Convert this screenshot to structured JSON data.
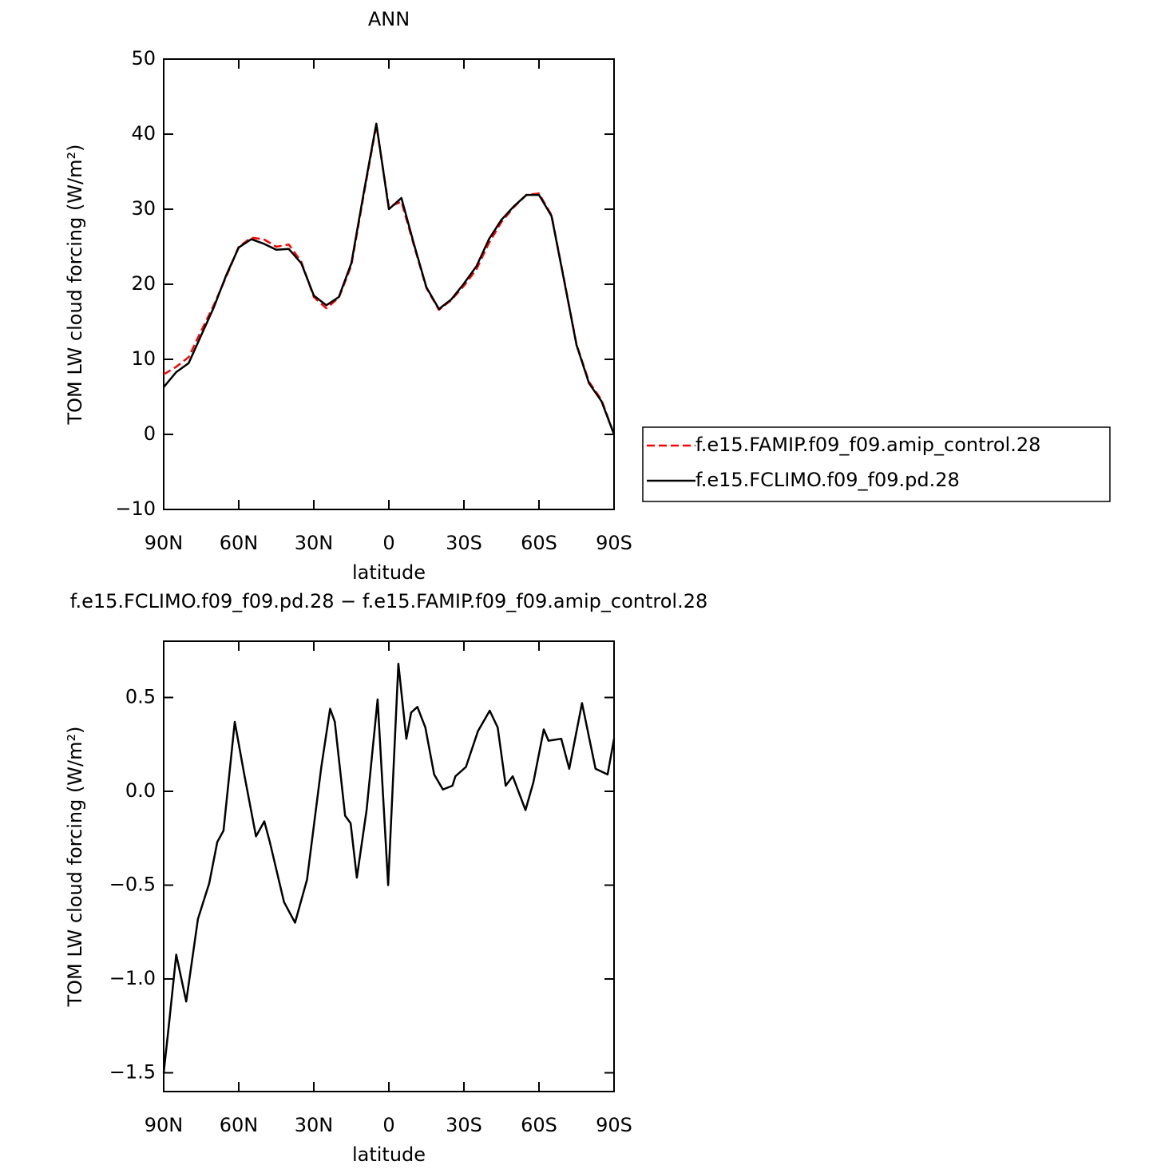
{
  "chart_data": [
    {
      "type": "line",
      "title": "ANN",
      "xlabel": "latitude",
      "ylabel": "TOM LW cloud forcing (W/m²)",
      "x": [
        90,
        85,
        80,
        75,
        70,
        65,
        60,
        55,
        50,
        45,
        40,
        35,
        30,
        25,
        20,
        15,
        10,
        5,
        0,
        -5,
        -10,
        -15,
        -20,
        -25,
        -30,
        -35,
        -40,
        -45,
        -50,
        -55,
        -60,
        -65,
        -70,
        -75,
        -80,
        -85,
        -90
      ],
      "series": [
        {
          "name": "f.e15.FAMIP.f09_f09.amip_control.28",
          "color": "#ff0000",
          "line_style": "dashed",
          "values": [
            8.0,
            9.0,
            10.3,
            13.8,
            17.2,
            21.0,
            25.0,
            26.2,
            26.0,
            25.0,
            25.3,
            23.0,
            18.3,
            16.8,
            18.2,
            22.5,
            32.0,
            41.2,
            30.3,
            31.0,
            25.2,
            19.5,
            16.6,
            17.9,
            19.8,
            22.0,
            25.5,
            28.3,
            30.3,
            31.9,
            32.1,
            29.2,
            20.7,
            12.0,
            7.0,
            4.6,
            0.0
          ]
        },
        {
          "name": "f.e15.FCLIMO.f09_f09.pd.28",
          "color": "#000000",
          "line_style": "solid",
          "values": [
            6.3,
            8.3,
            9.5,
            13.2,
            16.9,
            21.2,
            24.9,
            26.0,
            25.4,
            24.6,
            24.7,
            22.8,
            18.5,
            17.2,
            18.3,
            22.8,
            32.3,
            41.4,
            30.0,
            31.5,
            25.4,
            19.6,
            16.7,
            18.0,
            20.1,
            22.4,
            26.0,
            28.6,
            30.4,
            31.9,
            31.9,
            29.1,
            20.6,
            11.9,
            6.8,
            4.4,
            0.0
          ]
        }
      ],
      "xlim": [
        90,
        -90
      ],
      "xticks": [
        {
          "value": 90,
          "label": "90N"
        },
        {
          "value": 60,
          "label": "60N"
        },
        {
          "value": 30,
          "label": "30N"
        },
        0,
        {
          "value": -30,
          "label": "30S"
        },
        {
          "value": -60,
          "label": "60S"
        },
        {
          "value": -90,
          "label": "90S"
        }
      ],
      "ylim": [
        -10,
        50
      ],
      "yticks": [
        {
          "value": -10,
          "label": "−10"
        },
        0,
        10,
        20,
        30,
        40,
        50
      ],
      "legend": "outside-right"
    },
    {
      "type": "line",
      "title": "f.e15.FCLIMO.f09_f09.pd.28 − f.e15.FAMIP.f09_f09.amip_control.28",
      "xlabel": "latitude",
      "ylabel": "TOM LW cloud forcing (W/m²)",
      "x": [
        90,
        87.8,
        85,
        81,
        76.3,
        71.8,
        68.6,
        66.1,
        61.6,
        57.8,
        53.1,
        49.8,
        47.6,
        41.9,
        37.5,
        32.7,
        27,
        23.5,
        21.6,
        17.5,
        15.3,
        12.8,
        8.9,
        4.5,
        0.3,
        -3.8,
        -7,
        -8.9,
        -11.4,
        -14.6,
        -18.1,
        -21.6,
        -25.4,
        -26.6,
        -30.8,
        -35.6,
        -40.3,
        -43.5,
        -46.7,
        -49.5,
        -54.6,
        -57.8,
        -61.9,
        -63.8,
        -68.9,
        -72.1,
        -77.2,
        -82.6,
        -87.4,
        -90
      ],
      "series": [
        {
          "name": "f.e15.FCLIMO.f09_f09.pd.28 − f.e15.FAMIP.f09_f09.amip_control.28",
          "color": "#000000",
          "line_style": "solid",
          "values": [
            -1.5,
            -1.23,
            -0.87,
            -1.12,
            -0.68,
            -0.49,
            -0.27,
            -0.21,
            0.37,
            0.09,
            -0.24,
            -0.16,
            -0.27,
            -0.59,
            -0.7,
            -0.47,
            0.13,
            0.44,
            0.37,
            -0.13,
            -0.17,
            -0.46,
            -0.1,
            0.49,
            -0.5,
            0.68,
            0.28,
            0.42,
            0.45,
            0.34,
            0.09,
            0.01,
            0.03,
            0.08,
            0.13,
            0.32,
            0.43,
            0.34,
            0.03,
            0.08,
            -0.1,
            0.05,
            0.33,
            0.27,
            0.28,
            0.12,
            0.47,
            0.12,
            0.09,
            0.28
          ]
        }
      ],
      "xlim": [
        90,
        -90
      ],
      "xticks": [
        {
          "value": 90,
          "label": "90N"
        },
        {
          "value": 60,
          "label": "60N"
        },
        {
          "value": 30,
          "label": "30N"
        },
        0,
        {
          "value": -30,
          "label": "30S"
        },
        {
          "value": -60,
          "label": "60S"
        },
        {
          "value": -90,
          "label": "90S"
        }
      ],
      "ylim": [
        -1.6,
        0.8
      ],
      "yticks": [
        {
          "value": -1.5,
          "label": "−1.5"
        },
        {
          "value": -1.0,
          "label": "−1.0"
        },
        {
          "value": -0.5,
          "label": "−0.5"
        },
        {
          "value": 0.0,
          "label": "0.0"
        },
        0.5
      ]
    }
  ]
}
